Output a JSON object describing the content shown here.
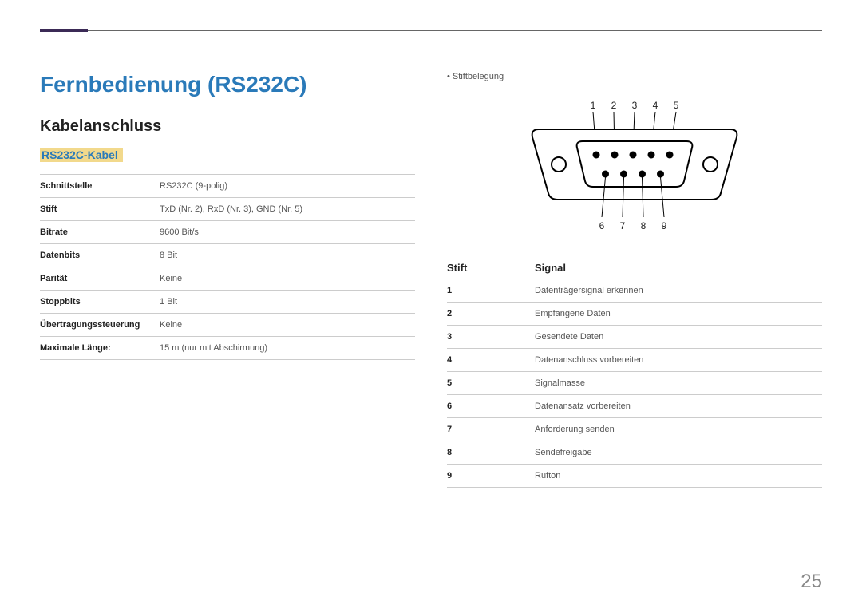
{
  "page": {
    "title": "Fernbedienung (RS232C)",
    "section": "Kabelanschluss",
    "subsection": "RS232C-Kabel",
    "page_number": "25",
    "accent_color": "#3b2a56"
  },
  "specs": {
    "rows": [
      {
        "label": "Schnittstelle",
        "value": "RS232C (9-polig)"
      },
      {
        "label": "Stift",
        "value": "TxD (Nr. 2), RxD (Nr. 3), GND (Nr. 5)"
      },
      {
        "label": "Bitrate",
        "value": "9600 Bit/s"
      },
      {
        "label": "Datenbits",
        "value": "8 Bit"
      },
      {
        "label": "Parität",
        "value": "Keine"
      },
      {
        "label": "Stoppbits",
        "value": "1 Bit"
      },
      {
        "label": "Übertragungssteuerung",
        "value": "Keine"
      },
      {
        "label": "Maximale Länge:",
        "value": "15 m (nur mit Abschirmung)"
      }
    ]
  },
  "pinout": {
    "bullet": "Stiftbelegung",
    "diagram": {
      "top_labels": [
        "1",
        "2",
        "3",
        "4",
        "5"
      ],
      "bottom_labels": [
        "6",
        "7",
        "8",
        "9"
      ],
      "shell_color": "#000000",
      "pin_color": "#000000",
      "background": "#ffffff"
    },
    "header_pin": "Stift",
    "header_signal": "Signal",
    "rows": [
      {
        "pin": "1",
        "signal": "Datenträgersignal erkennen"
      },
      {
        "pin": "2",
        "signal": "Empfangene Daten"
      },
      {
        "pin": "3",
        "signal": "Gesendete Daten"
      },
      {
        "pin": "4",
        "signal": "Datenanschluss vorbereiten"
      },
      {
        "pin": "5",
        "signal": "Signalmasse"
      },
      {
        "pin": "6",
        "signal": "Datenansatz vorbereiten"
      },
      {
        "pin": "7",
        "signal": "Anforderung senden"
      },
      {
        "pin": "8",
        "signal": "Sendefreigabe"
      },
      {
        "pin": "9",
        "signal": "Rufton"
      }
    ]
  }
}
